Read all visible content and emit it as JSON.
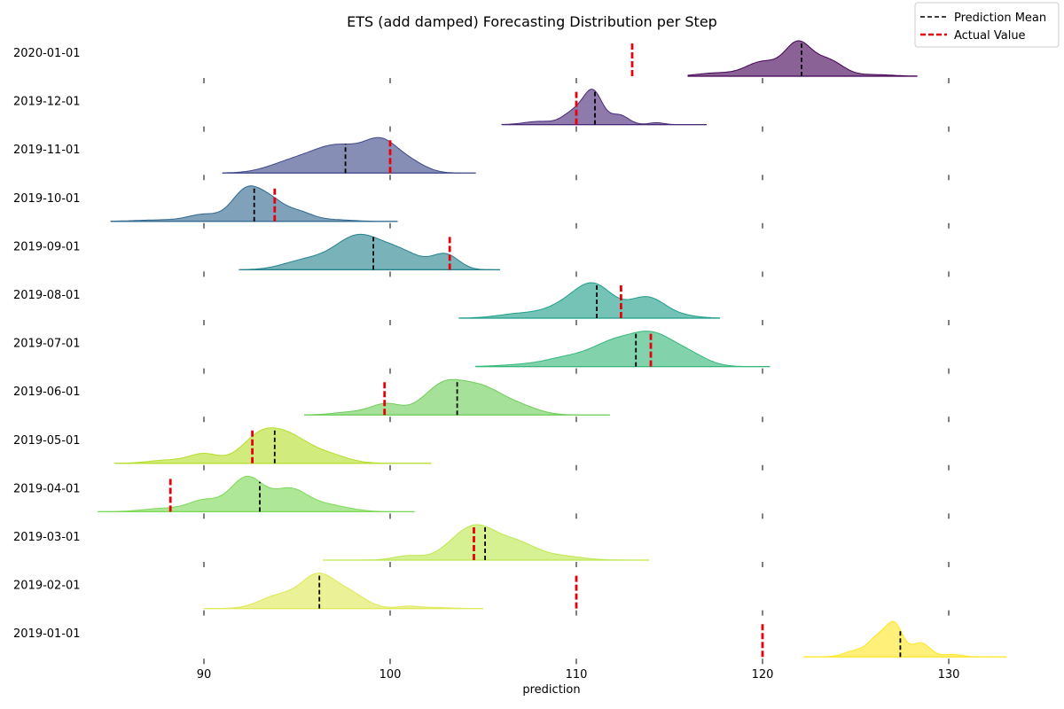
{
  "chart_data": {
    "type": "ridgeline",
    "title": "ETS (add damped) Forecasting Distribution per Step",
    "xlabel": "prediction",
    "ylabel": "",
    "xlim": [
      84,
      136
    ],
    "xticks": [
      90,
      100,
      110,
      120,
      130
    ],
    "grid": false,
    "legend_position": "top-right",
    "legend": [
      {
        "label": "Prediction Mean",
        "color": "#000000",
        "style": "dashed"
      },
      {
        "label": "Actual Value",
        "color": "#e8000b",
        "style": "dashed"
      }
    ],
    "series": [
      {
        "date": "2020-01-01",
        "color": "#440154",
        "range": [
          116,
          128.3
        ],
        "mean": 122.1,
        "actual": 113.0,
        "peaks": [
          [
            117.5,
            0.1,
            1
          ],
          [
            120,
            0.45,
            0.9
          ],
          [
            121.9,
            1.0,
            0.7
          ],
          [
            123.5,
            0.5,
            0.8
          ],
          [
            126,
            0.05,
            1
          ]
        ]
      },
      {
        "date": "2019-12-01",
        "color": "#482878",
        "range": [
          106,
          117
        ],
        "mean": 111.0,
        "actual": 110.0,
        "peaks": [
          [
            108,
            0.1,
            0.8
          ],
          [
            109.9,
            0.4,
            0.6
          ],
          [
            110.9,
            1.0,
            0.5
          ],
          [
            112.3,
            0.3,
            0.5
          ],
          [
            114.3,
            0.06,
            0.4
          ]
        ]
      },
      {
        "date": "2019-11-01",
        "color": "#3e4989",
        "range": [
          91,
          104.6
        ],
        "mean": 97.6,
        "actual": 100.0,
        "peaks": [
          [
            94.5,
            0.3,
            1.2
          ],
          [
            97.2,
            1.0,
            1.5
          ],
          [
            99.6,
            0.95,
            0.9
          ],
          [
            101.2,
            0.3,
            0.8
          ]
        ]
      },
      {
        "date": "2019-10-01",
        "color": "#31688e",
        "range": [
          85,
          100.4
        ],
        "mean": 92.7,
        "actual": 93.8,
        "peaks": [
          [
            88,
            0.05,
            1.5
          ],
          [
            90,
            0.2,
            0.8
          ],
          [
            92.3,
            1.0,
            0.8
          ],
          [
            93.6,
            0.5,
            0.7
          ],
          [
            95,
            0.3,
            0.8
          ],
          [
            97,
            0.05,
            1
          ]
        ]
      },
      {
        "date": "2019-09-01",
        "color": "#26828e",
        "range": [
          91.9,
          105.9
        ],
        "mean": 99.1,
        "actual": 103.2,
        "peaks": [
          [
            95.5,
            0.3,
            1.2
          ],
          [
            98.2,
            1.0,
            1.2
          ],
          [
            100.5,
            0.55,
            1.2
          ],
          [
            103,
            0.45,
            0.7
          ]
        ]
      },
      {
        "date": "2019-08-01",
        "color": "#1f9e89",
        "range": [
          103.7,
          117.7
        ],
        "mean": 111.1,
        "actual": 112.4,
        "peaks": [
          [
            107,
            0.15,
            1.2
          ],
          [
            109.5,
            0.4,
            1.1
          ],
          [
            111,
            1.0,
            1
          ],
          [
            113.8,
            0.7,
            1
          ],
          [
            116,
            0.05,
            0.8
          ]
        ]
      },
      {
        "date": "2019-07-01",
        "color": "#35b779",
        "range": [
          104.6,
          120.4
        ],
        "mean": 113.2,
        "actual": 114.0,
        "peaks": [
          [
            107,
            0.06,
            1.2
          ],
          [
            109.5,
            0.3,
            1.2
          ],
          [
            112,
            0.8,
            1.2
          ],
          [
            114.1,
            1.0,
            1.1
          ],
          [
            116,
            0.4,
            1
          ]
        ]
      },
      {
        "date": "2019-06-01",
        "color": "#6ece58",
        "range": [
          95.4,
          111.8
        ],
        "mean": 103.6,
        "actual": 99.7,
        "peaks": [
          [
            98,
            0.1,
            1
          ],
          [
            99.8,
            0.35,
            0.8
          ],
          [
            102.9,
            1.0,
            1.1
          ],
          [
            105,
            0.8,
            1.1
          ],
          [
            107,
            0.25,
            1
          ]
        ]
      },
      {
        "date": "2019-05-01",
        "color": "#b5de2b",
        "range": [
          85.2,
          102.2
        ],
        "mean": 93.8,
        "actual": 92.6,
        "peaks": [
          [
            88,
            0.1,
            1
          ],
          [
            90,
            0.3,
            0.8
          ],
          [
            93,
            0.85,
            1
          ],
          [
            94.6,
            0.7,
            1
          ],
          [
            96.5,
            0.3,
            1.1
          ]
        ]
      },
      {
        "date": "2019-04-01",
        "color": "#7dd957",
        "range": [
          84.3,
          101.3
        ],
        "mean": 93.0,
        "actual": 88.2,
        "peaks": [
          [
            88,
            0.1,
            1.2
          ],
          [
            90,
            0.3,
            0.8
          ],
          [
            92.3,
            1.0,
            0.9
          ],
          [
            94.6,
            0.6,
            0.9
          ],
          [
            96.5,
            0.2,
            1.2
          ]
        ]
      },
      {
        "date": "2019-03-01",
        "color": "#bde84f",
        "range": [
          96.4,
          113.9
        ],
        "mean": 105.1,
        "actual": 104.5,
        "peaks": [
          [
            101,
            0.15,
            0.8
          ],
          [
            103.5,
            0.4,
            0.9
          ],
          [
            104.8,
            1.0,
            1
          ],
          [
            106.8,
            0.55,
            1
          ],
          [
            109,
            0.15,
            1.2
          ]
        ]
      },
      {
        "date": "2019-02-01",
        "color": "#dde955",
        "range": [
          90,
          105
        ],
        "mean": 96.2,
        "actual": 110.0,
        "peaks": [
          [
            94,
            0.4,
            1.0
          ],
          [
            96.1,
            1.0,
            0.9
          ],
          [
            97.8,
            0.45,
            0.9
          ],
          [
            101,
            0.07,
            0.6
          ],
          [
            102.5,
            0.03,
            0.8
          ]
        ]
      },
      {
        "date": "2019-01-01",
        "color": "#fde725",
        "range": [
          122.2,
          133.1
        ],
        "mean": 127.4,
        "actual": 120.0,
        "peaks": [
          [
            125,
            0.2,
            0.6
          ],
          [
            126.2,
            0.6,
            0.5
          ],
          [
            127.1,
            1.0,
            0.45
          ],
          [
            128.5,
            0.45,
            0.5
          ],
          [
            130.2,
            0.08,
            0.5
          ]
        ]
      }
    ]
  }
}
